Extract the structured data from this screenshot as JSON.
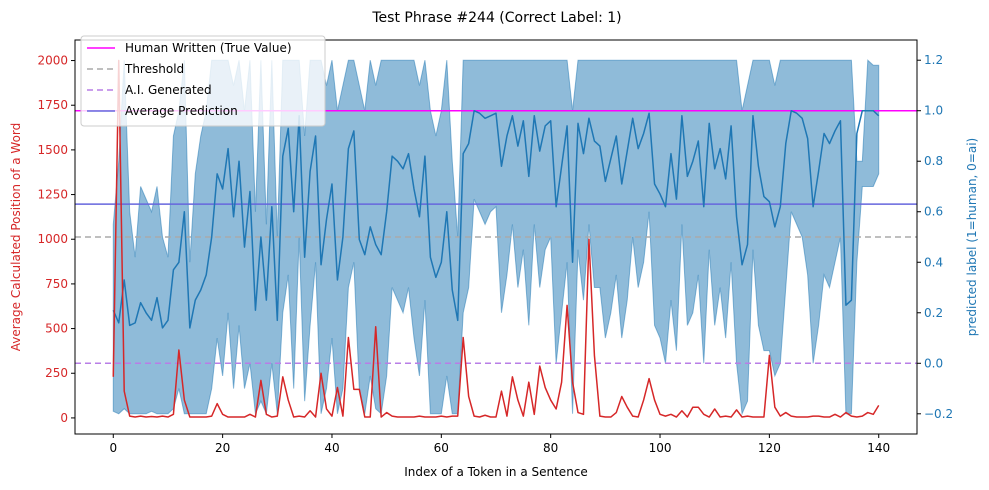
{
  "chart_data": {
    "type": "line",
    "title": "Test Phrase #244 (Correct Label: 1)",
    "xlabel": "Index of a Token in a Sentence",
    "ylabel_left": "Average Calculated Position of a Word",
    "ylabel_right": "predicted label (1=human, 0=ai)",
    "xlim": [
      -7,
      147
    ],
    "ylim_left": [
      -90,
      2115
    ],
    "ylim_right": [
      -0.28,
      1.28
    ],
    "x_ticks": [
      0,
      20,
      40,
      60,
      80,
      100,
      120,
      140
    ],
    "x_tick_labels": [
      "0",
      "20",
      "40",
      "60",
      "80",
      "100",
      "120",
      "140"
    ],
    "y_left_ticks": [
      0,
      250,
      500,
      750,
      1000,
      1250,
      1500,
      1750,
      2000
    ],
    "y_left_tick_labels": [
      "0",
      "250",
      "500",
      "750",
      "1000",
      "1250",
      "1500",
      "1750",
      "2000"
    ],
    "y_right_ticks": [
      -0.2,
      0.0,
      0.2,
      0.4,
      0.6,
      0.8,
      1.0,
      1.2
    ],
    "y_right_tick_labels": [
      "−0.2",
      "0.0",
      "0.2",
      "0.4",
      "0.6",
      "0.8",
      "1.0",
      "1.2"
    ],
    "colors": {
      "word_position": "#d62728",
      "prediction": "#1f77b4",
      "band": "#1f77b4",
      "human": "#ff00ff",
      "threshold": "#aaaaaa",
      "ai": "#b87ee6",
      "average": "#6666dd",
      "left_axis_text": "#d62728",
      "right_axis_text": "#1f77b4"
    },
    "legend": {
      "placement": "top-left",
      "entries": [
        {
          "label": "Human Written (True Value)",
          "color": "#ff00ff",
          "style": "solid"
        },
        {
          "label": "Threshold",
          "color": "#aaaaaa",
          "style": "dashed"
        },
        {
          "label": "A.I. Generated",
          "color": "#b87ee6",
          "style": "dashed"
        },
        {
          "label": "Average Prediction",
          "color": "#6666dd",
          "style": "solid"
        }
      ]
    },
    "reference_lines": {
      "human_true_value": 1.0,
      "threshold": 0.5,
      "ai_generated": 0.0,
      "average_prediction": 0.63
    },
    "series": [
      {
        "name": "Average Calculated Position of a Word",
        "axis": "left",
        "x": [
          0,
          1,
          2,
          3,
          4,
          5,
          6,
          7,
          8,
          9,
          10,
          11,
          12,
          13,
          14,
          15,
          16,
          17,
          18,
          19,
          20,
          21,
          22,
          23,
          24,
          25,
          26,
          27,
          28,
          29,
          30,
          31,
          32,
          33,
          34,
          35,
          36,
          37,
          38,
          39,
          40,
          41,
          42,
          43,
          44,
          45,
          46,
          47,
          48,
          49,
          50,
          51,
          52,
          53,
          54,
          55,
          56,
          57,
          58,
          59,
          60,
          61,
          62,
          63,
          64,
          65,
          66,
          67,
          68,
          69,
          70,
          71,
          72,
          73,
          74,
          75,
          76,
          77,
          78,
          79,
          80,
          81,
          82,
          83,
          84,
          85,
          86,
          87,
          88,
          89,
          90,
          91,
          92,
          93,
          94,
          95,
          96,
          97,
          98,
          99,
          100,
          101,
          102,
          103,
          104,
          105,
          106,
          107,
          108,
          109,
          110,
          111,
          112,
          113,
          114,
          115,
          116,
          117,
          118,
          119,
          120,
          121,
          122,
          123,
          124,
          125,
          126,
          127,
          128,
          129,
          130,
          131,
          132,
          133,
          134,
          135,
          136,
          137,
          138,
          139,
          140
        ],
        "values": [
          230,
          2000,
          150,
          10,
          5,
          10,
          5,
          8,
          5,
          10,
          5,
          20,
          380,
          100,
          5,
          5,
          5,
          5,
          10,
          80,
          20,
          5,
          5,
          5,
          5,
          20,
          5,
          210,
          20,
          5,
          10,
          230,
          100,
          5,
          10,
          5,
          40,
          5,
          250,
          50,
          10,
          170,
          10,
          450,
          160,
          160,
          5,
          5,
          510,
          5,
          30,
          10,
          5,
          5,
          5,
          5,
          10,
          5,
          5,
          5,
          10,
          5,
          10,
          10,
          450,
          120,
          10,
          5,
          15,
          5,
          5,
          150,
          10,
          230,
          100,
          10,
          200,
          20,
          290,
          170,
          100,
          50,
          200,
          630,
          200,
          30,
          20,
          1000,
          350,
          10,
          5,
          5,
          30,
          120,
          60,
          10,
          5,
          100,
          220,
          100,
          20,
          10,
          20,
          5,
          40,
          5,
          60,
          60,
          20,
          5,
          50,
          5,
          10,
          5,
          45,
          5,
          10,
          5,
          5,
          5,
          350,
          60,
          10,
          30,
          10,
          5,
          5,
          5,
          10,
          10,
          5,
          5,
          20,
          5,
          30,
          10,
          5,
          10,
          30,
          20,
          70
        ]
      },
      {
        "name": "Predicted Label",
        "axis": "right",
        "x": [
          0,
          1,
          2,
          3,
          4,
          5,
          6,
          7,
          8,
          9,
          10,
          11,
          12,
          13,
          14,
          15,
          16,
          17,
          18,
          19,
          20,
          21,
          22,
          23,
          24,
          25,
          26,
          27,
          28,
          29,
          30,
          31,
          32,
          33,
          34,
          35,
          36,
          37,
          38,
          39,
          40,
          41,
          42,
          43,
          44,
          45,
          46,
          47,
          48,
          49,
          50,
          51,
          52,
          53,
          54,
          55,
          56,
          57,
          58,
          59,
          60,
          61,
          62,
          63,
          64,
          65,
          66,
          67,
          68,
          69,
          70,
          71,
          72,
          73,
          74,
          75,
          76,
          77,
          78,
          79,
          80,
          81,
          82,
          83,
          84,
          85,
          86,
          87,
          88,
          89,
          90,
          91,
          92,
          93,
          94,
          95,
          96,
          97,
          98,
          99,
          100,
          101,
          102,
          103,
          104,
          105,
          106,
          107,
          108,
          109,
          110,
          111,
          112,
          113,
          114,
          115,
          116,
          117,
          118,
          119,
          120,
          121,
          122,
          123,
          124,
          125,
          126,
          127,
          128,
          129,
          130,
          131,
          132,
          133,
          134,
          135,
          136,
          137,
          138,
          139,
          140
        ],
        "values": [
          0.21,
          0.16,
          0.33,
          0.15,
          0.16,
          0.24,
          0.2,
          0.17,
          0.26,
          0.14,
          0.17,
          0.37,
          0.4,
          0.6,
          0.14,
          0.25,
          0.29,
          0.35,
          0.5,
          0.75,
          0.69,
          0.85,
          0.58,
          0.8,
          0.46,
          0.68,
          0.21,
          0.5,
          0.25,
          0.62,
          0.17,
          0.82,
          0.93,
          0.6,
          0.98,
          0.42,
          0.76,
          0.9,
          0.39,
          0.57,
          0.71,
          0.33,
          0.5,
          0.85,
          0.92,
          0.49,
          0.43,
          0.54,
          0.47,
          0.43,
          0.6,
          0.82,
          0.8,
          0.77,
          0.83,
          0.69,
          0.58,
          0.82,
          0.42,
          0.34,
          0.4,
          0.6,
          0.29,
          0.17,
          0.83,
          0.87,
          1.0,
          0.99,
          0.97,
          0.98,
          0.99,
          0.78,
          0.9,
          0.98,
          0.86,
          0.96,
          0.74,
          0.98,
          0.84,
          0.94,
          0.96,
          0.62,
          0.78,
          0.94,
          0.4,
          0.95,
          0.83,
          0.97,
          0.88,
          0.86,
          0.72,
          0.81,
          0.9,
          0.71,
          0.84,
          0.97,
          0.85,
          0.91,
          0.99,
          0.71,
          0.67,
          0.62,
          0.83,
          0.65,
          0.98,
          0.74,
          0.8,
          0.88,
          0.62,
          0.95,
          0.77,
          0.85,
          0.73,
          0.94,
          0.58,
          0.39,
          0.47,
          0.98,
          0.78,
          0.66,
          0.64,
          0.54,
          0.62,
          0.87,
          1.0,
          0.99,
          0.97,
          0.89,
          0.62,
          0.76,
          0.91,
          0.87,
          0.92,
          0.96,
          0.23,
          0.25,
          0.91,
          1.0,
          1.0,
          1.0,
          0.98
        ]
      },
      {
        "name": "Prediction Band Upper",
        "axis": "right",
        "values": [
          0.55,
          0.8,
          1.2,
          0.6,
          0.42,
          0.7,
          0.65,
          0.6,
          0.7,
          0.5,
          0.42,
          0.9,
          1.0,
          1.2,
          0.4,
          0.75,
          0.9,
          1.0,
          1.2,
          1.2,
          1.2,
          1.2,
          1.1,
          1.2,
          1.0,
          1.2,
          0.6,
          1.2,
          0.55,
          1.2,
          0.5,
          1.2,
          1.2,
          1.2,
          1.2,
          0.9,
          1.2,
          1.2,
          1.2,
          1.1,
          1.2,
          1.0,
          1.1,
          1.2,
          1.2,
          1.1,
          1.0,
          1.2,
          1.1,
          1.2,
          1.2,
          1.2,
          1.2,
          1.2,
          1.2,
          1.2,
          1.1,
          1.2,
          1.0,
          0.9,
          1.0,
          1.2,
          0.8,
          0.5,
          1.2,
          1.2,
          1.2,
          1.2,
          1.2,
          1.2,
          1.2,
          1.2,
          1.2,
          1.2,
          1.2,
          1.2,
          1.2,
          1.2,
          1.2,
          1.2,
          1.2,
          1.2,
          1.2,
          1.2,
          1.0,
          1.2,
          1.2,
          1.2,
          1.2,
          1.2,
          1.2,
          1.2,
          1.2,
          1.2,
          1.2,
          1.2,
          1.2,
          1.2,
          1.2,
          1.2,
          1.2,
          1.2,
          1.2,
          1.2,
          1.2,
          1.2,
          1.2,
          1.2,
          1.2,
          1.2,
          1.2,
          1.2,
          1.2,
          1.2,
          1.2,
          1.0,
          1.1,
          1.2,
          1.2,
          1.2,
          1.2,
          1.1,
          1.2,
          1.2,
          1.2,
          1.2,
          1.2,
          1.2,
          1.2,
          1.2,
          1.2,
          1.2,
          1.2,
          1.2,
          1.2,
          1.2,
          0.8,
          0.8,
          1.2,
          1.18,
          1.18,
          1.18,
          1.2
        ]
      },
      {
        "name": "Prediction Band Lower",
        "axis": "right",
        "values": [
          -0.19,
          -0.2,
          -0.18,
          -0.2,
          -0.2,
          -0.2,
          -0.2,
          -0.19,
          -0.2,
          -0.2,
          -0.2,
          -0.18,
          -0.1,
          -0.2,
          -0.2,
          -0.2,
          -0.2,
          -0.2,
          -0.1,
          0.1,
          -0.05,
          0.2,
          -0.1,
          0.15,
          -0.1,
          0.0,
          -0.2,
          -0.15,
          -0.2,
          0.0,
          -0.2,
          0.2,
          0.35,
          -0.1,
          0.5,
          -0.15,
          0.15,
          0.4,
          -0.2,
          -0.1,
          0.1,
          -0.2,
          -0.1,
          0.3,
          0.4,
          -0.1,
          -0.2,
          -0.05,
          -0.18,
          -0.2,
          -0.05,
          0.3,
          0.25,
          0.2,
          0.3,
          0.1,
          -0.05,
          0.25,
          -0.2,
          -0.2,
          -0.2,
          -0.05,
          -0.2,
          -0.2,
          0.2,
          0.3,
          0.65,
          0.6,
          0.55,
          0.6,
          0.62,
          0.2,
          0.35,
          0.55,
          0.3,
          0.45,
          0.15,
          0.55,
          0.3,
          0.45,
          0.5,
          0.0,
          0.2,
          0.4,
          -0.2,
          0.45,
          0.25,
          0.55,
          0.3,
          0.3,
          0.1,
          0.2,
          0.35,
          0.1,
          0.25,
          0.5,
          0.3,
          0.4,
          0.6,
          0.15,
          0.1,
          0.0,
          0.25,
          0.05,
          0.55,
          0.15,
          0.2,
          0.35,
          0.0,
          0.45,
          0.15,
          0.3,
          0.1,
          0.4,
          0.0,
          -0.2,
          -0.15,
          0.45,
          0.15,
          0.05,
          0.05,
          -0.05,
          0.0,
          0.3,
          0.6,
          0.55,
          0.5,
          0.35,
          0.0,
          0.15,
          0.35,
          0.3,
          0.4,
          0.5,
          -0.2,
          -0.2,
          0.4,
          0.7,
          0.7,
          0.7,
          0.75
        ]
      }
    ]
  }
}
